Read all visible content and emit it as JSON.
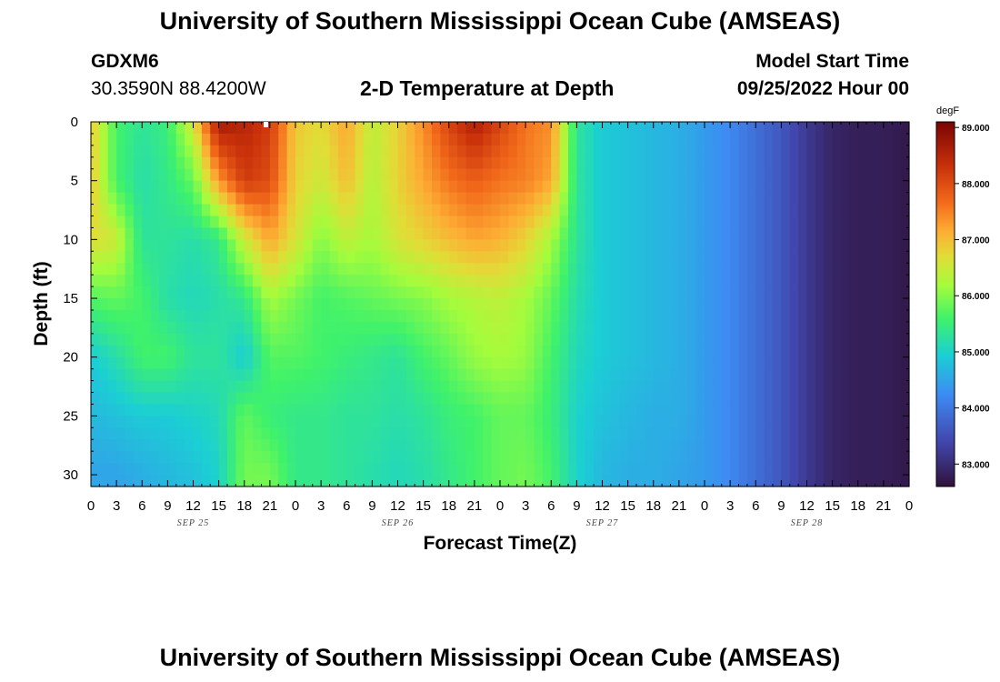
{
  "header": {
    "title": "University of Southern Mississippi Ocean Cube (AMSEAS)",
    "station": "GDXM6",
    "coords": "30.3590N  88.4200W",
    "subtitle": "2-D Temperature at Depth",
    "start_label": "Model Start Time",
    "start_value": "09/25/2022 Hour 00"
  },
  "footer": {
    "title": "University of Southern Mississippi Ocean Cube (AMSEAS)"
  },
  "chart_data": {
    "type": "heatmap",
    "title": "2-D Temperature at Depth",
    "xlabel": "Forecast Time(Z)",
    "ylabel": "Depth (ft)",
    "colorbar_unit": "degF",
    "x_hours": [
      0,
      3,
      6,
      9,
      12,
      15,
      18,
      21,
      24,
      27,
      30,
      33,
      36,
      39,
      42,
      45,
      48,
      51,
      54,
      57,
      60,
      63,
      66,
      69,
      72,
      75,
      78,
      81,
      84,
      87,
      90,
      93,
      96
    ],
    "x_tick_labels": [
      "0",
      "3",
      "6",
      "9",
      "12",
      "15",
      "18",
      "21",
      "0",
      "3",
      "6",
      "9",
      "12",
      "15",
      "18",
      "21",
      "0",
      "3",
      "6",
      "9",
      "12",
      "15",
      "18",
      "21",
      "0",
      "3",
      "6",
      "9",
      "12",
      "15",
      "18",
      "21",
      "0"
    ],
    "date_labels": [
      {
        "hour": 12,
        "label": "SEP 25"
      },
      {
        "hour": 36,
        "label": "SEP 26"
      },
      {
        "hour": 60,
        "label": "SEP 27"
      },
      {
        "hour": 84,
        "label": "SEP 28"
      }
    ],
    "y_ticks": [
      0,
      5,
      10,
      15,
      20,
      25,
      30
    ],
    "ylim": [
      0,
      31
    ],
    "xlim": [
      0,
      96
    ],
    "colorbar_ticks": [
      "89.000",
      "88.000",
      "87.000",
      "86.000",
      "85.000",
      "84.000",
      "83.000"
    ],
    "colorbar_range": [
      82.6,
      89.1
    ],
    "depths": [
      0,
      5,
      10,
      15,
      20,
      25,
      30
    ],
    "temperatures": [
      [
        86.9,
        85.6,
        85.3,
        85.5,
        86.6,
        88.7,
        88.5,
        88.2,
        86.9,
        86.7,
        87.2,
        86.4,
        86.8,
        87.4,
        88.1,
        88.6,
        88.1,
        87.6,
        87.4,
        85.3,
        84.9,
        84.8,
        84.7,
        84.6,
        84.4,
        84.2,
        83.9,
        83.6,
        83.2,
        82.9,
        82.8,
        82.8,
        82.7
      ],
      [
        86.9,
        85.6,
        85.2,
        85.4,
        85.8,
        87.3,
        88.2,
        88.0,
        86.8,
        86.5,
        87.0,
        86.3,
        86.8,
        87.2,
        87.6,
        87.8,
        87.6,
        87.5,
        87.2,
        85.3,
        84.9,
        84.8,
        84.7,
        84.6,
        84.4,
        84.2,
        83.9,
        83.6,
        83.2,
        82.9,
        82.8,
        82.8,
        82.7
      ],
      [
        86.7,
        86.5,
        85.3,
        85.3,
        85.2,
        85.4,
        86.5,
        87.2,
        86.6,
        86.0,
        86.4,
        86.2,
        86.6,
        86.8,
        87.0,
        87.2,
        87.1,
        86.8,
        86.2,
        85.3,
        84.9,
        84.8,
        84.7,
        84.6,
        84.4,
        84.2,
        83.9,
        83.6,
        83.2,
        82.9,
        82.8,
        82.8,
        82.7
      ],
      [
        85.7,
        85.8,
        85.6,
        85.2,
        85.1,
        85.2,
        85.4,
        86.2,
        85.9,
        85.6,
        85.7,
        85.8,
        85.9,
        86.0,
        86.2,
        86.3,
        86.4,
        86.2,
        85.8,
        85.2,
        84.9,
        84.8,
        84.7,
        84.6,
        84.4,
        84.2,
        83.9,
        83.6,
        83.2,
        82.9,
        82.8,
        82.8,
        82.7
      ],
      [
        84.9,
        85.2,
        85.6,
        85.6,
        85.3,
        85.3,
        84.9,
        85.7,
        85.7,
        85.6,
        85.5,
        85.4,
        85.3,
        85.6,
        85.8,
        86.1,
        86.2,
        86.1,
        85.6,
        85.1,
        84.9,
        84.8,
        84.7,
        84.6,
        84.4,
        84.2,
        83.9,
        83.6,
        83.2,
        82.9,
        82.8,
        82.8,
        82.7
      ],
      [
        84.7,
        84.8,
        84.9,
        84.9,
        85.0,
        85.1,
        85.8,
        85.5,
        85.4,
        85.4,
        85.3,
        85.3,
        85.2,
        85.3,
        85.5,
        85.6,
        85.8,
        85.8,
        85.5,
        85.0,
        84.8,
        84.7,
        84.6,
        84.6,
        84.4,
        84.2,
        83.9,
        83.6,
        83.2,
        82.9,
        82.8,
        82.8,
        82.7
      ],
      [
        84.5,
        84.5,
        84.6,
        84.7,
        84.8,
        85.0,
        85.9,
        85.9,
        85.4,
        85.4,
        85.3,
        85.2,
        85.1,
        85.2,
        85.4,
        85.6,
        85.8,
        85.9,
        85.6,
        85.0,
        84.7,
        84.6,
        84.6,
        84.5,
        84.4,
        84.2,
        83.9,
        83.6,
        83.2,
        82.9,
        82.8,
        82.8,
        82.7
      ]
    ]
  }
}
